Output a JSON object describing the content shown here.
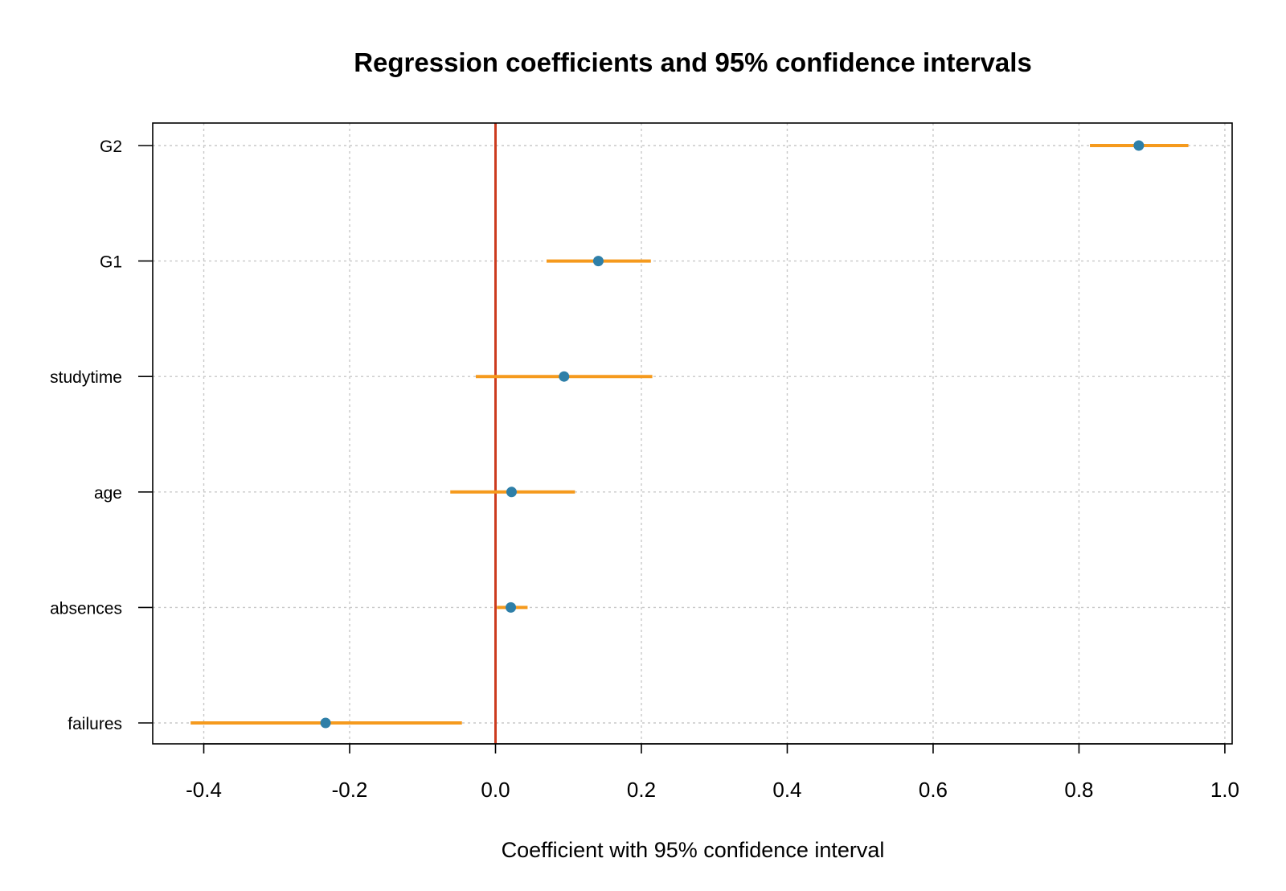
{
  "chart_data": {
    "type": "scatter",
    "title": "Regression coefficients and 95% confidence intervals",
    "xlabel": "Coefficient with 95% confidence interval",
    "ylabel": "",
    "xlim": [
      -0.47,
      1.01
    ],
    "xticks": [
      "-0.4",
      "-0.2",
      "0.0",
      "0.2",
      "0.4",
      "0.6",
      "0.8",
      "1.0"
    ],
    "grid": true,
    "reference_line": 0,
    "colors": {
      "point": "#2e7fa8",
      "interval": "#f59a1d",
      "reference": "#cc3b1e",
      "grid": "#c8c8c8"
    },
    "categories": [
      "G2",
      "G1",
      "studytime",
      "age",
      "absences",
      "failures"
    ],
    "series": [
      {
        "estimates": [
          0.882,
          0.141,
          0.094,
          0.022,
          0.021,
          -0.233
        ],
        "ci_lower": [
          0.815,
          0.07,
          -0.027,
          -0.062,
          0.002,
          -0.418
        ],
        "ci_upper": [
          0.95,
          0.213,
          0.215,
          0.109,
          0.044,
          -0.046
        ]
      }
    ]
  }
}
